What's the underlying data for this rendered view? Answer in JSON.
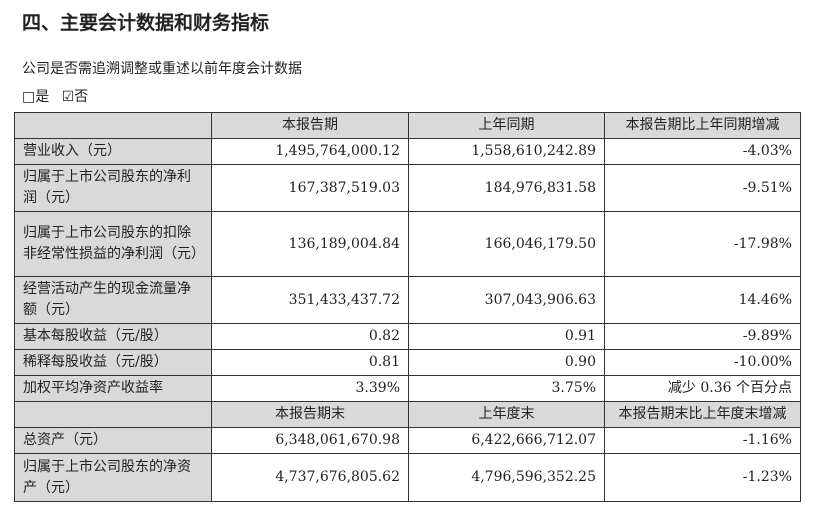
{
  "title": "四、主要会计数据和财务指标",
  "question": "公司是否需追溯调整或重述以前年度会计数据",
  "options": {
    "yes": "□是",
    "no": "☑否"
  },
  "header1": [
    "",
    "本报告期",
    "上年同期",
    "本报告期比上年同期增减"
  ],
  "rows1": [
    [
      "营业收入（元）",
      "1,495,764,000.12",
      "1,558,610,242.89",
      "-4.03%"
    ],
    [
      "归属于上市公司股东的净利润（元）",
      "167,387,519.03",
      "184,976,831.58",
      "-9.51%"
    ],
    [
      "归属于上市公司股东的扣除非经常性损益的净利润（元）",
      "136,189,004.84",
      "166,046,179.50",
      "-17.98%"
    ],
    [
      "经营活动产生的现金流量净额（元）",
      "351,433,437.72",
      "307,043,906.63",
      "14.46%"
    ],
    [
      "基本每股收益（元/股）",
      "0.82",
      "0.91",
      "-9.89%"
    ],
    [
      "稀释每股收益（元/股）",
      "0.81",
      "0.90",
      "-10.00%"
    ],
    [
      "加权平均净资产收益率",
      "3.39%",
      "3.75%",
      "减少 0.36 个百分点"
    ]
  ],
  "header2": [
    "",
    "本报告期末",
    "上年度末",
    "本报告期末比上年度末增减"
  ],
  "rows2": [
    [
      "总资产（元）",
      "6,348,061,670.98",
      "6,422,666,712.07",
      "-1.16%"
    ],
    [
      "归属于上市公司股东的净资产（元）",
      "4,737,676,805.62",
      "4,796,596,352.25",
      "-1.23%"
    ]
  ]
}
